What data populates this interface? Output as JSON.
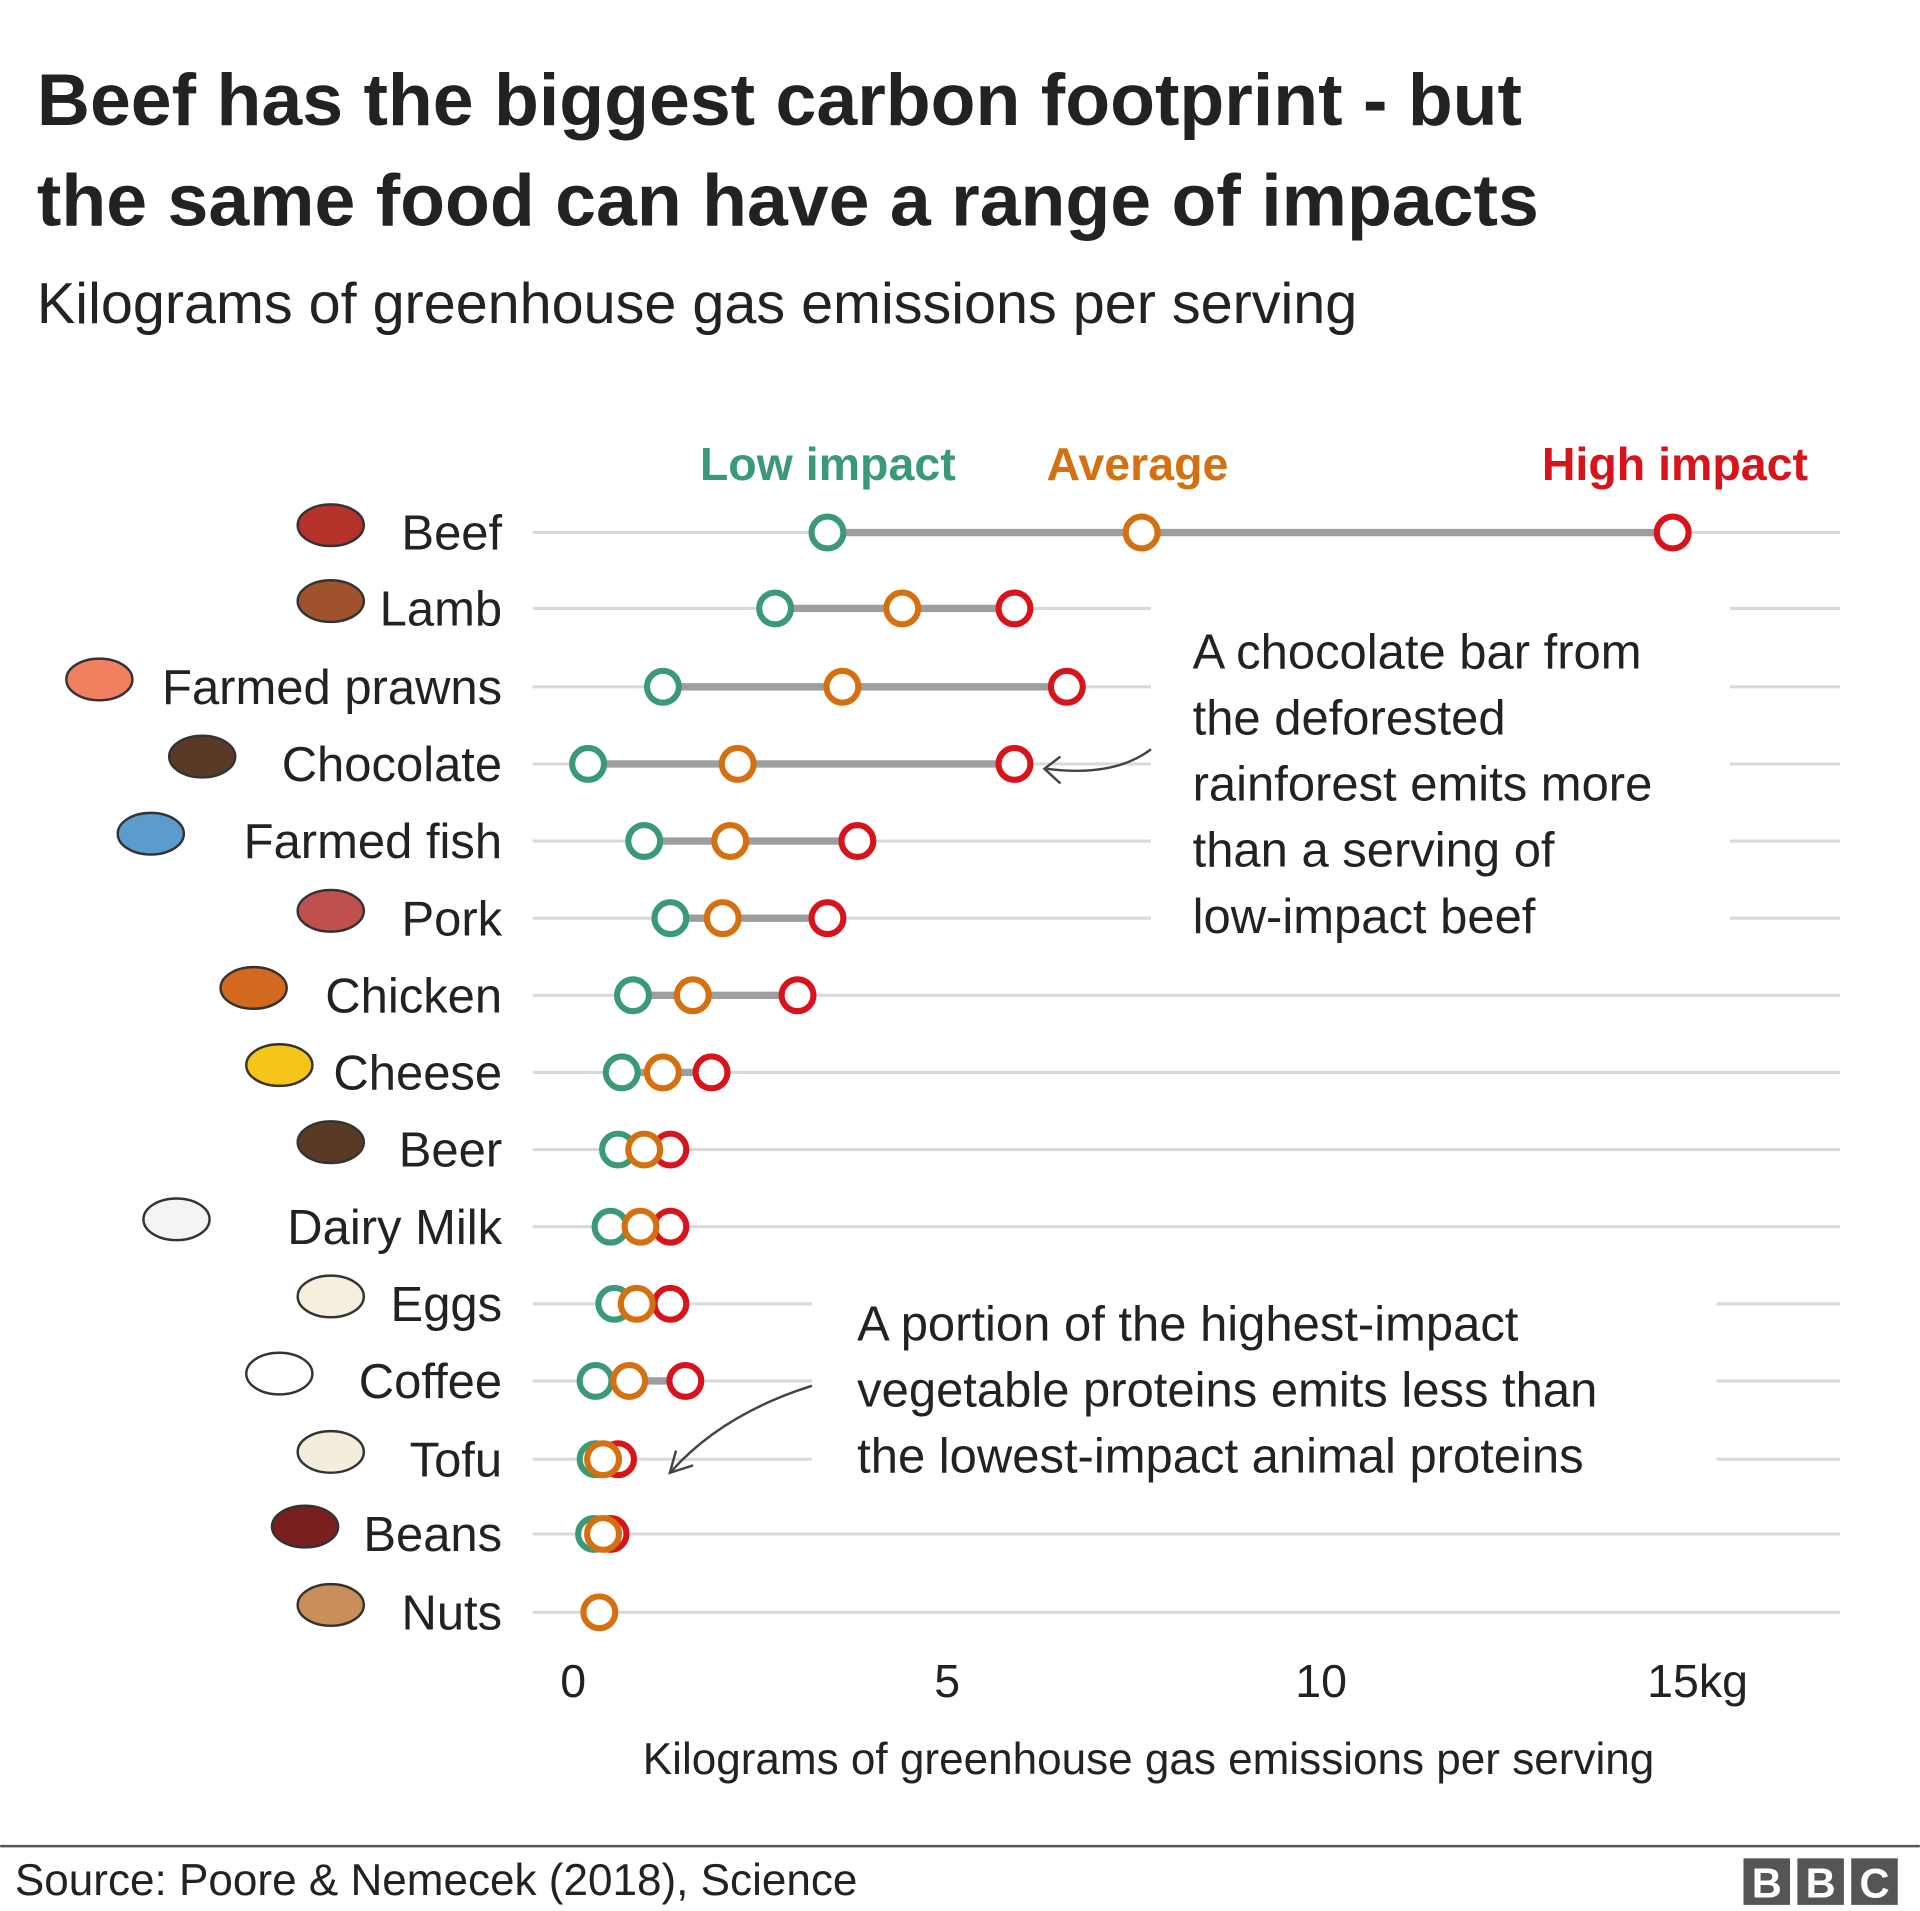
{
  "title_line1": "Beef has the biggest carbon footprint - but",
  "title_line2": "the same food can have a range of impacts",
  "subtitle": "Kilograms of greenhouse gas emissions per serving",
  "source": "Source: Poore & Nemecek (2018), Science",
  "logo": "BBC",
  "colors": {
    "low": "#3a9a78",
    "average": "#d4700f",
    "high": "#d7141b",
    "range": "#9e9e9e",
    "grid": "#d9d9d9"
  },
  "annotations": [
    {
      "lines": [
        "A chocolate bar from",
        "the deforested",
        "rainforest emits more",
        "than a serving of",
        "low-impact beef"
      ]
    },
    {
      "lines": [
        "A portion of the highest-impact",
        "vegetable proteins emits less than",
        "the lowest-impact animal proteins"
      ]
    }
  ],
  "chart_data": {
    "type": "dot-range",
    "xlabel": "Kilograms of greenhouse gas emissions per serving",
    "xlim": [
      0,
      17
    ],
    "xticks": [
      {
        "value": 0,
        "label": "0"
      },
      {
        "value": 5,
        "label": "5"
      },
      {
        "value": 10,
        "label": "10"
      },
      {
        "value": 15,
        "label": "15kg"
      }
    ],
    "legend": {
      "low": "Low impact",
      "average": "Average",
      "high": "High impact",
      "placement": "top"
    },
    "categories": [
      {
        "name": "Beef",
        "icon": "steak-icon",
        "low": 3.4,
        "average": 7.6,
        "high": 14.7
      },
      {
        "name": "Lamb",
        "icon": "lamb-icon",
        "low": 2.7,
        "average": 4.4,
        "high": 5.9
      },
      {
        "name": "Farmed prawns",
        "icon": "prawn-icon",
        "low": 1.2,
        "average": 3.6,
        "high": 6.6
      },
      {
        "name": "Chocolate",
        "icon": "chocolate-icon",
        "low": 0.2,
        "average": 2.2,
        "high": 5.9
      },
      {
        "name": "Farmed fish",
        "icon": "fish-icon",
        "low": 0.95,
        "average": 2.1,
        "high": 3.8
      },
      {
        "name": "Pork",
        "icon": "ham-icon",
        "low": 1.3,
        "average": 2.0,
        "high": 3.4
      },
      {
        "name": "Chicken",
        "icon": "roast-chicken-icon",
        "low": 0.8,
        "average": 1.6,
        "high": 3.0
      },
      {
        "name": "Cheese",
        "icon": "cheese-icon",
        "low": 0.65,
        "average": 1.2,
        "high": 1.85
      },
      {
        "name": "Beer",
        "icon": "beer-bottle-icon",
        "low": 0.6,
        "average": 0.95,
        "high": 1.3
      },
      {
        "name": "Dairy Milk",
        "icon": "milk-bottle-icon",
        "low": 0.5,
        "average": 0.9,
        "high": 1.3
      },
      {
        "name": "Eggs",
        "icon": "eggs-icon",
        "low": 0.55,
        "average": 0.85,
        "high": 1.3
      },
      {
        "name": "Coffee",
        "icon": "coffee-cup-icon",
        "low": 0.3,
        "average": 0.75,
        "high": 1.5
      },
      {
        "name": "Tofu",
        "icon": "tofu-icon",
        "low": 0.3,
        "average": 0.4,
        "high": 0.6
      },
      {
        "name": "Beans",
        "icon": "bean-icon",
        "low": 0.28,
        "average": 0.4,
        "high": 0.5
      },
      {
        "name": "Nuts",
        "icon": "nuts-icon",
        "average": 0.35
      }
    ]
  }
}
